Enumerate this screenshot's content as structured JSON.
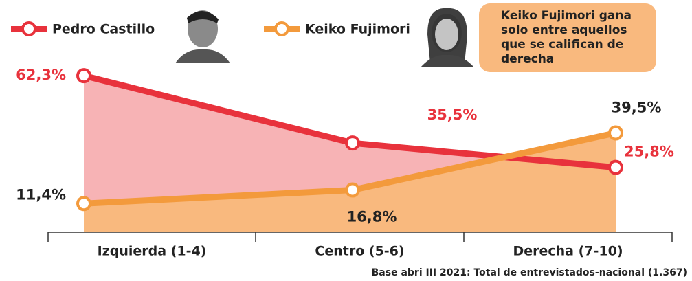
{
  "chart_data": {
    "type": "area",
    "annotation": "Keiko Fujimori gana solo entre aquellos que se califican de derecha",
    "footnote": "Base abri III 2021: Total de entrevistados-nacional (1.367)",
    "categories": [
      "Izquierda (1-4)",
      "Centro (5-6)",
      "Derecha (7-10)"
    ],
    "ylim": [
      0,
      70
    ],
    "series": [
      {
        "name": "Pedro Castillo",
        "color": "#e8323c",
        "fill": "#f7b3b5",
        "values": [
          62.3,
          35.5,
          25.8
        ],
        "value_labels": [
          "62,3%",
          "35,5%",
          "25,8%"
        ]
      },
      {
        "name": "Keiko Fujimori",
        "color": "#f39a3c",
        "fill": "#f9b97e",
        "values": [
          11.4,
          16.8,
          39.5
        ],
        "value_labels": [
          "11,4%",
          "16,8%",
          "39,5%"
        ]
      }
    ]
  }
}
